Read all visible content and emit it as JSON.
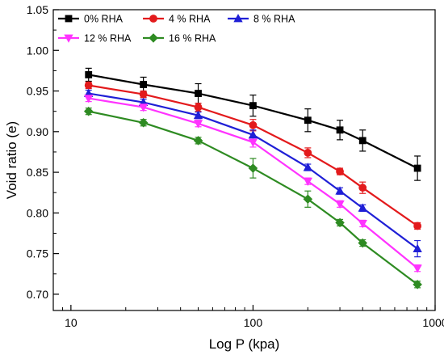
{
  "chart_data": {
    "type": "line",
    "title": "",
    "xlabel": "Log P (kpa)",
    "ylabel": "Void ratio (e)",
    "xscale": "log",
    "xlim": [
      8,
      1000
    ],
    "ylim": [
      0.68,
      1.05
    ],
    "x_ticks": [
      "10",
      "100",
      "1000"
    ],
    "y_ticks": [
      "0.70",
      "0.75",
      "0.80",
      "0.85",
      "0.90",
      "0.95",
      "1.00",
      "1.05"
    ],
    "legend_position": "top-left",
    "grid": false,
    "x": [
      12.5,
      25,
      50,
      100,
      200,
      300,
      400,
      800
    ],
    "series": [
      {
        "name": "0% RHA",
        "color": "#000000",
        "marker": "square",
        "values": [
          0.97,
          0.958,
          0.947,
          0.932,
          0.914,
          0.902,
          0.889,
          0.855
        ],
        "errors": [
          0.008,
          0.009,
          0.012,
          0.013,
          0.014,
          0.012,
          0.013,
          0.015
        ]
      },
      {
        "name": "4 % RHA",
        "color": "#e31a1c",
        "marker": "circle",
        "values": [
          0.957,
          0.946,
          0.93,
          0.908,
          0.874,
          0.851,
          0.831,
          0.784
        ],
        "errors": [
          0.004,
          0.004,
          0.005,
          0.007,
          0.006,
          0.004,
          0.007,
          0.004
        ]
      },
      {
        "name": "8 % RHA",
        "color": "#1f1fd6",
        "marker": "triangle-up",
        "values": [
          0.947,
          0.936,
          0.92,
          0.896,
          0.856,
          0.827,
          0.806,
          0.756
        ],
        "errors": [
          0.004,
          0.004,
          0.004,
          0.006,
          0.004,
          0.004,
          0.004,
          0.01
        ]
      },
      {
        "name": "12 % RHA",
        "color": "#ff33ff",
        "marker": "triangle-down",
        "values": [
          0.941,
          0.93,
          0.91,
          0.887,
          0.839,
          0.811,
          0.787,
          0.732
        ],
        "errors": [
          0.004,
          0.004,
          0.004,
          0.006,
          0.004,
          0.004,
          0.004,
          0.004
        ]
      },
      {
        "name": "16 % RHA",
        "color": "#2e8b22",
        "marker": "diamond",
        "values": [
          0.925,
          0.911,
          0.889,
          0.855,
          0.817,
          0.788,
          0.763,
          0.712
        ],
        "errors": [
          0.004,
          0.004,
          0.004,
          0.012,
          0.01,
          0.004,
          0.004,
          0.004
        ]
      }
    ]
  }
}
